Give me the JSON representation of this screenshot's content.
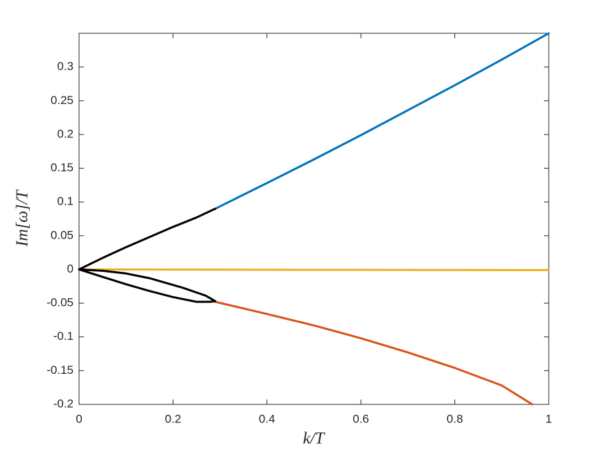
{
  "chart_data": {
    "type": "line",
    "x_label": "k/T",
    "y_label": "Im[ω]/T",
    "xlim": [
      0,
      1
    ],
    "ylim": [
      -0.2,
      0.35
    ],
    "xticks": [
      0,
      0.2,
      0.4,
      0.6,
      0.8,
      1
    ],
    "yticks": [
      -0.2,
      -0.15,
      -0.1,
      -0.05,
      0,
      0.05,
      0.1,
      0.15,
      0.2,
      0.25,
      0.3
    ],
    "grid": false,
    "series": [
      {
        "color": "#0072bd",
        "x": [
          0.29,
          0.4,
          0.5,
          0.6,
          0.7,
          0.8,
          0.9,
          1.0
        ],
        "values": [
          0.09,
          0.128,
          0.163,
          0.199,
          0.236,
          0.273,
          0.311,
          0.35
        ]
      },
      {
        "color": "#d95319",
        "x": [
          0.29,
          0.4,
          0.5,
          0.6,
          0.7,
          0.8,
          0.9,
          0.965
        ],
        "values": [
          -0.048,
          -0.066,
          -0.083,
          -0.102,
          -0.123,
          -0.146,
          -0.172,
          -0.2
        ]
      },
      {
        "color": "#edb120",
        "x": [
          0,
          0.5,
          1
        ],
        "values": [
          0,
          -0.0005,
          -0.001
        ]
      },
      {
        "color": "#000000",
        "x": [
          0,
          0.05,
          0.1,
          0.15,
          0.2,
          0.25,
          0.29
        ],
        "values": [
          0,
          0.017,
          0.033,
          0.048,
          0.063,
          0.077,
          0.09
        ]
      },
      {
        "color": "#000000",
        "x": [
          0,
          0.05,
          0.1,
          0.15,
          0.2,
          0.25,
          0.28,
          0.29,
          0.27,
          0.22,
          0.15,
          0.1,
          0.05,
          0
        ],
        "values": [
          0,
          -0.011,
          -0.022,
          -0.032,
          -0.041,
          -0.048,
          -0.048,
          -0.047,
          -0.039,
          -0.027,
          -0.013,
          -0.006,
          -0.002,
          0
        ]
      }
    ]
  }
}
